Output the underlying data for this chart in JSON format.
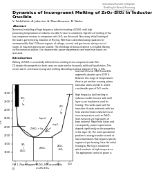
{
  "title": "Dynamics of Incongruent Melting of ZrO₂-SiO₂ in Inductor\nCrucible",
  "authors": "V. Fridefields, A. Jakovics, A. Mueckhausen, B. Nacke",
  "section_abstract": "Abstract",
  "abstract_text": "Numerical modelling of high frequency induction heating of ZrSiO₄ with high\nprocessing temperatures in inductor-crucible furnace is considered. Specifics of melting of this\ntwo-component mixture in comparison with ZrO₂ are discussed. Necessary initial heating of\nthe load is performed by induction of Mo ring. Melt flow is described using equations for\nincompressible fluid. Different regimes of voltage, current, and gas burner during a set of\nstages of induction process are studied. The shrinkage of porous material is included. Basing\non the numerical studies, the characteristic power requirements and main heat losses are\nestimated.",
  "section_intro": "Introduction",
  "intro_line1": "Melting of ZrSiO₄ is essentially different from melting of one-component oxide ZrO₂",
  "intro_line2": "[1] despite the properties in both cases are quite similar for purely solid and liquid states. This",
  "intro_line3": "occurs due to continuous incongruent melting. According to phase diagram of Fig. 1, SiO₂",
  "right_col_text": "and melts first at 1960 K and ZrO₂\napparently absorbs up to 2973 K.\nBetween this range of temperatures\nthere is yet another crossing, phase\ntransition starts at 2223 K, where\nconsiderable part of ZrO₂ melts.\n\nHigh frequency skull melting in\ninductor-crucible furnace with skull\nlayer as an insulator is used for\nheating. This works quite well for\ntransition of oxide materials with low\nheat and electrical conductivities at\nroom temperature such as ZrSiO₄.\nSuch furnaces use high purity of\nbase material. Major heat losses and,\nconsequently, power requirements\ndepend significantly on the properties\nof the layer [1]. The main operational\nproblem is energy transfer to melt at\nlow temperatures that requires special\nregimes of pre-heating. Here the initial\nheating by Mo ring is considered\nwhich conducts at high temperature.\nThe appropriate control of power is",
  "fig_caption": "Fig. 1. Phase diagram of ZrO₂-SiO₂ according to\n[1]",
  "journal_header": "International Scientific Colloquium\nModelling for Material Processing\nRiga, June 8-9, 2006",
  "bg_color": "#ffffff",
  "text_color": "#000000"
}
